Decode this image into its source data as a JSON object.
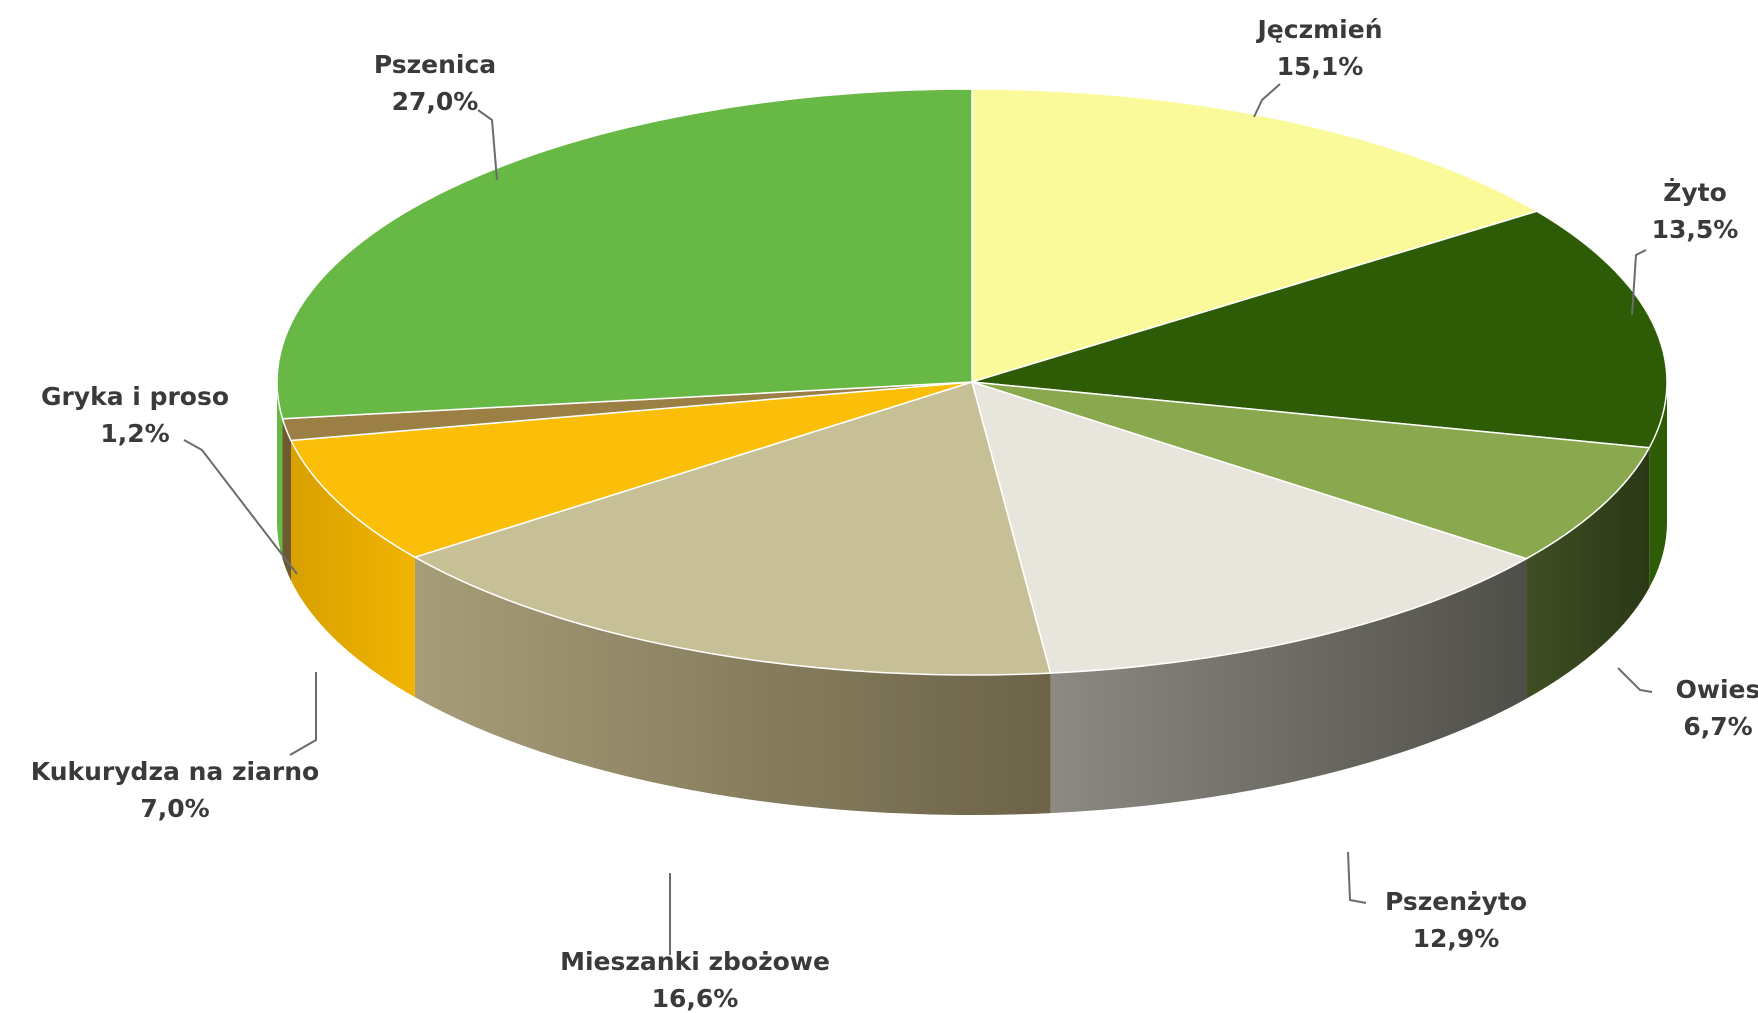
{
  "chart_data": {
    "type": "pie",
    "style": "3d",
    "title": "",
    "slices": [
      {
        "label": "Jęczmień",
        "value": 15.1,
        "value_label": "15,1%",
        "color": "#fafa9a"
      },
      {
        "label": "Żyto",
        "value": 13.5,
        "value_label": "13,5%",
        "color": "#2e5c06"
      },
      {
        "label": "Owies",
        "value": 6.7,
        "value_label": "6,7%",
        "color": "#8aa84e"
      },
      {
        "label": "Pszenżyto",
        "value": 12.9,
        "value_label": "12,9%",
        "color": "#e8e6dc"
      },
      {
        "label": "Mieszanki zbożowe",
        "value": 16.6,
        "value_label": "16,6%",
        "color": "#c7bf96"
      },
      {
        "label": "Kukurydza na ziarno",
        "value": 7.0,
        "value_label": "7,0%",
        "color": "#fbbf0a"
      },
      {
        "label": "Gryka i proso",
        "value": 1.2,
        "value_label": "1,2%",
        "color": "#9c7f45"
      },
      {
        "label": "Pszenica",
        "value": 27.0,
        "value_label": "27,0%",
        "color": "#68b845"
      }
    ]
  }
}
